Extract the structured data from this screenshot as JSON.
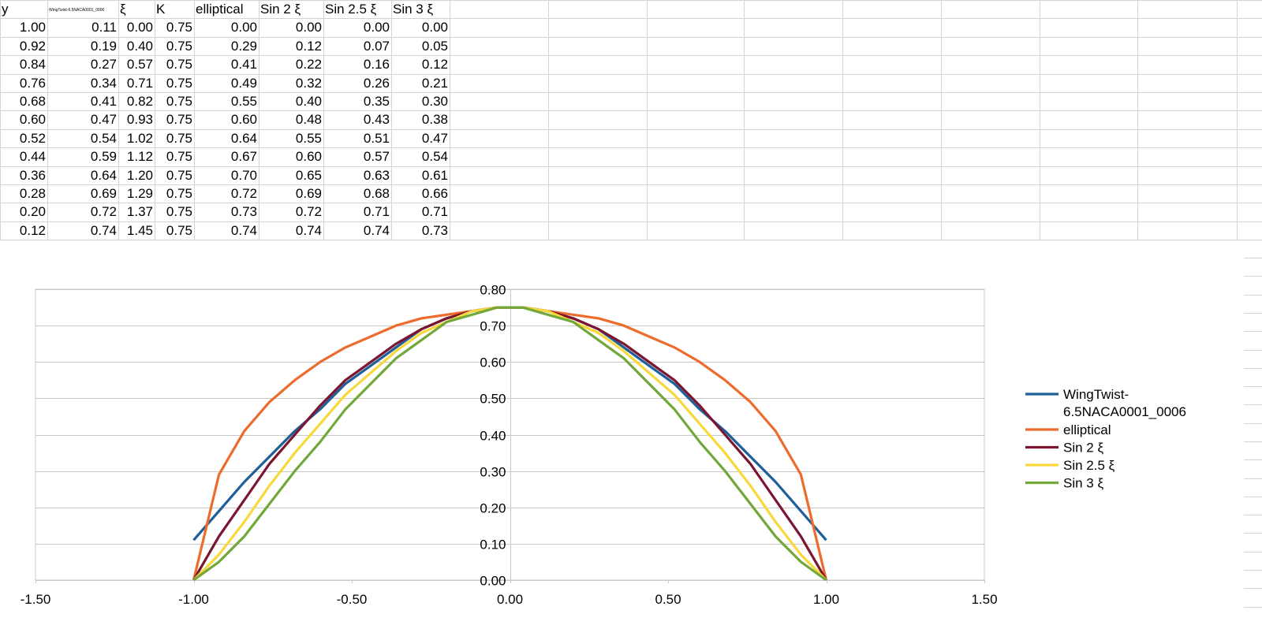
{
  "sheet": {
    "headers": [
      "y",
      "WingTwist-6.5NACA0001_0006",
      "ξ",
      "K",
      "elliptical",
      "Sin 2 ξ",
      "Sin 2.5 ξ",
      "Sin 3 ξ"
    ],
    "rows": [
      [
        "1.00",
        "0.11",
        "0.00",
        "0.75",
        "0.00",
        "0.00",
        "0.00",
        "0.00"
      ],
      [
        "0.92",
        "0.19",
        "0.40",
        "0.75",
        "0.29",
        "0.12",
        "0.07",
        "0.05"
      ],
      [
        "0.84",
        "0.27",
        "0.57",
        "0.75",
        "0.41",
        "0.22",
        "0.16",
        "0.12"
      ],
      [
        "0.76",
        "0.34",
        "0.71",
        "0.75",
        "0.49",
        "0.32",
        "0.26",
        "0.21"
      ],
      [
        "0.68",
        "0.41",
        "0.82",
        "0.75",
        "0.55",
        "0.40",
        "0.35",
        "0.30"
      ],
      [
        "0.60",
        "0.47",
        "0.93",
        "0.75",
        "0.60",
        "0.48",
        "0.43",
        "0.38"
      ],
      [
        "0.52",
        "0.54",
        "1.02",
        "0.75",
        "0.64",
        "0.55",
        "0.51",
        "0.47"
      ],
      [
        "0.44",
        "0.59",
        "1.12",
        "0.75",
        "0.67",
        "0.60",
        "0.57",
        "0.54"
      ],
      [
        "0.36",
        "0.64",
        "1.20",
        "0.75",
        "0.70",
        "0.65",
        "0.63",
        "0.61"
      ],
      [
        "0.28",
        "0.69",
        "1.29",
        "0.75",
        "0.72",
        "0.69",
        "0.68",
        "0.66"
      ],
      [
        "0.20",
        "0.72",
        "1.37",
        "0.75",
        "0.73",
        "0.72",
        "0.71",
        "0.71"
      ],
      [
        "0.12",
        "0.74",
        "1.45",
        "0.75",
        "0.74",
        "0.74",
        "0.74",
        "0.73"
      ]
    ]
  },
  "chart_data": {
    "type": "line",
    "title": "",
    "xlabel": "",
    "ylabel": "",
    "xlim": [
      -1.5,
      1.5
    ],
    "ylim": [
      0,
      0.8
    ],
    "xticks": [
      "-1.50",
      "-1.00",
      "-0.50",
      "0.00",
      "0.50",
      "1.00",
      "1.50"
    ],
    "yticks": [
      "0.00",
      "0.10",
      "0.20",
      "0.30",
      "0.40",
      "0.50",
      "0.60",
      "0.70",
      "0.80"
    ],
    "grid": "horizontal",
    "legend_position": "right",
    "x": [
      -1.0,
      -0.92,
      -0.84,
      -0.76,
      -0.68,
      -0.6,
      -0.52,
      -0.44,
      -0.36,
      -0.28,
      -0.2,
      -0.12,
      -0.04,
      0.04,
      0.12,
      0.2,
      0.28,
      0.36,
      0.44,
      0.52,
      0.6,
      0.68,
      0.76,
      0.84,
      0.92,
      1.0
    ],
    "series": [
      {
        "name": "WingTwist-6.5NACA0001_0006",
        "color": "#1f5f99",
        "values": [
          0.11,
          0.19,
          0.27,
          0.34,
          0.41,
          0.47,
          0.54,
          0.59,
          0.64,
          0.69,
          0.72,
          0.74,
          0.75,
          0.75,
          0.74,
          0.72,
          0.69,
          0.64,
          0.59,
          0.54,
          0.47,
          0.41,
          0.34,
          0.27,
          0.19,
          0.11
        ]
      },
      {
        "name": "elliptical",
        "color": "#ed6b2c",
        "values": [
          0.0,
          0.29,
          0.41,
          0.49,
          0.55,
          0.6,
          0.64,
          0.67,
          0.7,
          0.72,
          0.73,
          0.74,
          0.75,
          0.75,
          0.74,
          0.73,
          0.72,
          0.7,
          0.67,
          0.64,
          0.6,
          0.55,
          0.49,
          0.41,
          0.29,
          0.0
        ]
      },
      {
        "name": "Sin 2 ξ",
        "color": "#7b1530",
        "values": [
          0.0,
          0.12,
          0.22,
          0.32,
          0.4,
          0.48,
          0.55,
          0.6,
          0.65,
          0.69,
          0.72,
          0.74,
          0.75,
          0.75,
          0.74,
          0.72,
          0.69,
          0.65,
          0.6,
          0.55,
          0.48,
          0.4,
          0.32,
          0.22,
          0.12,
          0.0
        ]
      },
      {
        "name": "Sin 2.5 ξ",
        "color": "#f8d83a",
        "values": [
          0.0,
          0.07,
          0.16,
          0.26,
          0.35,
          0.43,
          0.51,
          0.57,
          0.63,
          0.68,
          0.71,
          0.74,
          0.75,
          0.75,
          0.74,
          0.71,
          0.68,
          0.63,
          0.57,
          0.51,
          0.43,
          0.35,
          0.26,
          0.16,
          0.07,
          0.0
        ]
      },
      {
        "name": "Sin 3 ξ",
        "color": "#72a83a",
        "values": [
          0.0,
          0.05,
          0.12,
          0.21,
          0.3,
          0.38,
          0.47,
          0.54,
          0.61,
          0.66,
          0.71,
          0.73,
          0.75,
          0.75,
          0.73,
          0.71,
          0.66,
          0.61,
          0.54,
          0.47,
          0.38,
          0.3,
          0.21,
          0.12,
          0.05,
          0.0
        ]
      }
    ],
    "legend": [
      {
        "line1": "WingTwist-",
        "line2": "6.5NACA0001_0006"
      },
      {
        "line1": "elliptical"
      },
      {
        "line1": "Sin 2 ξ"
      },
      {
        "line1": "Sin 2.5 ξ"
      },
      {
        "line1": "Sin 3 ξ"
      }
    ]
  }
}
